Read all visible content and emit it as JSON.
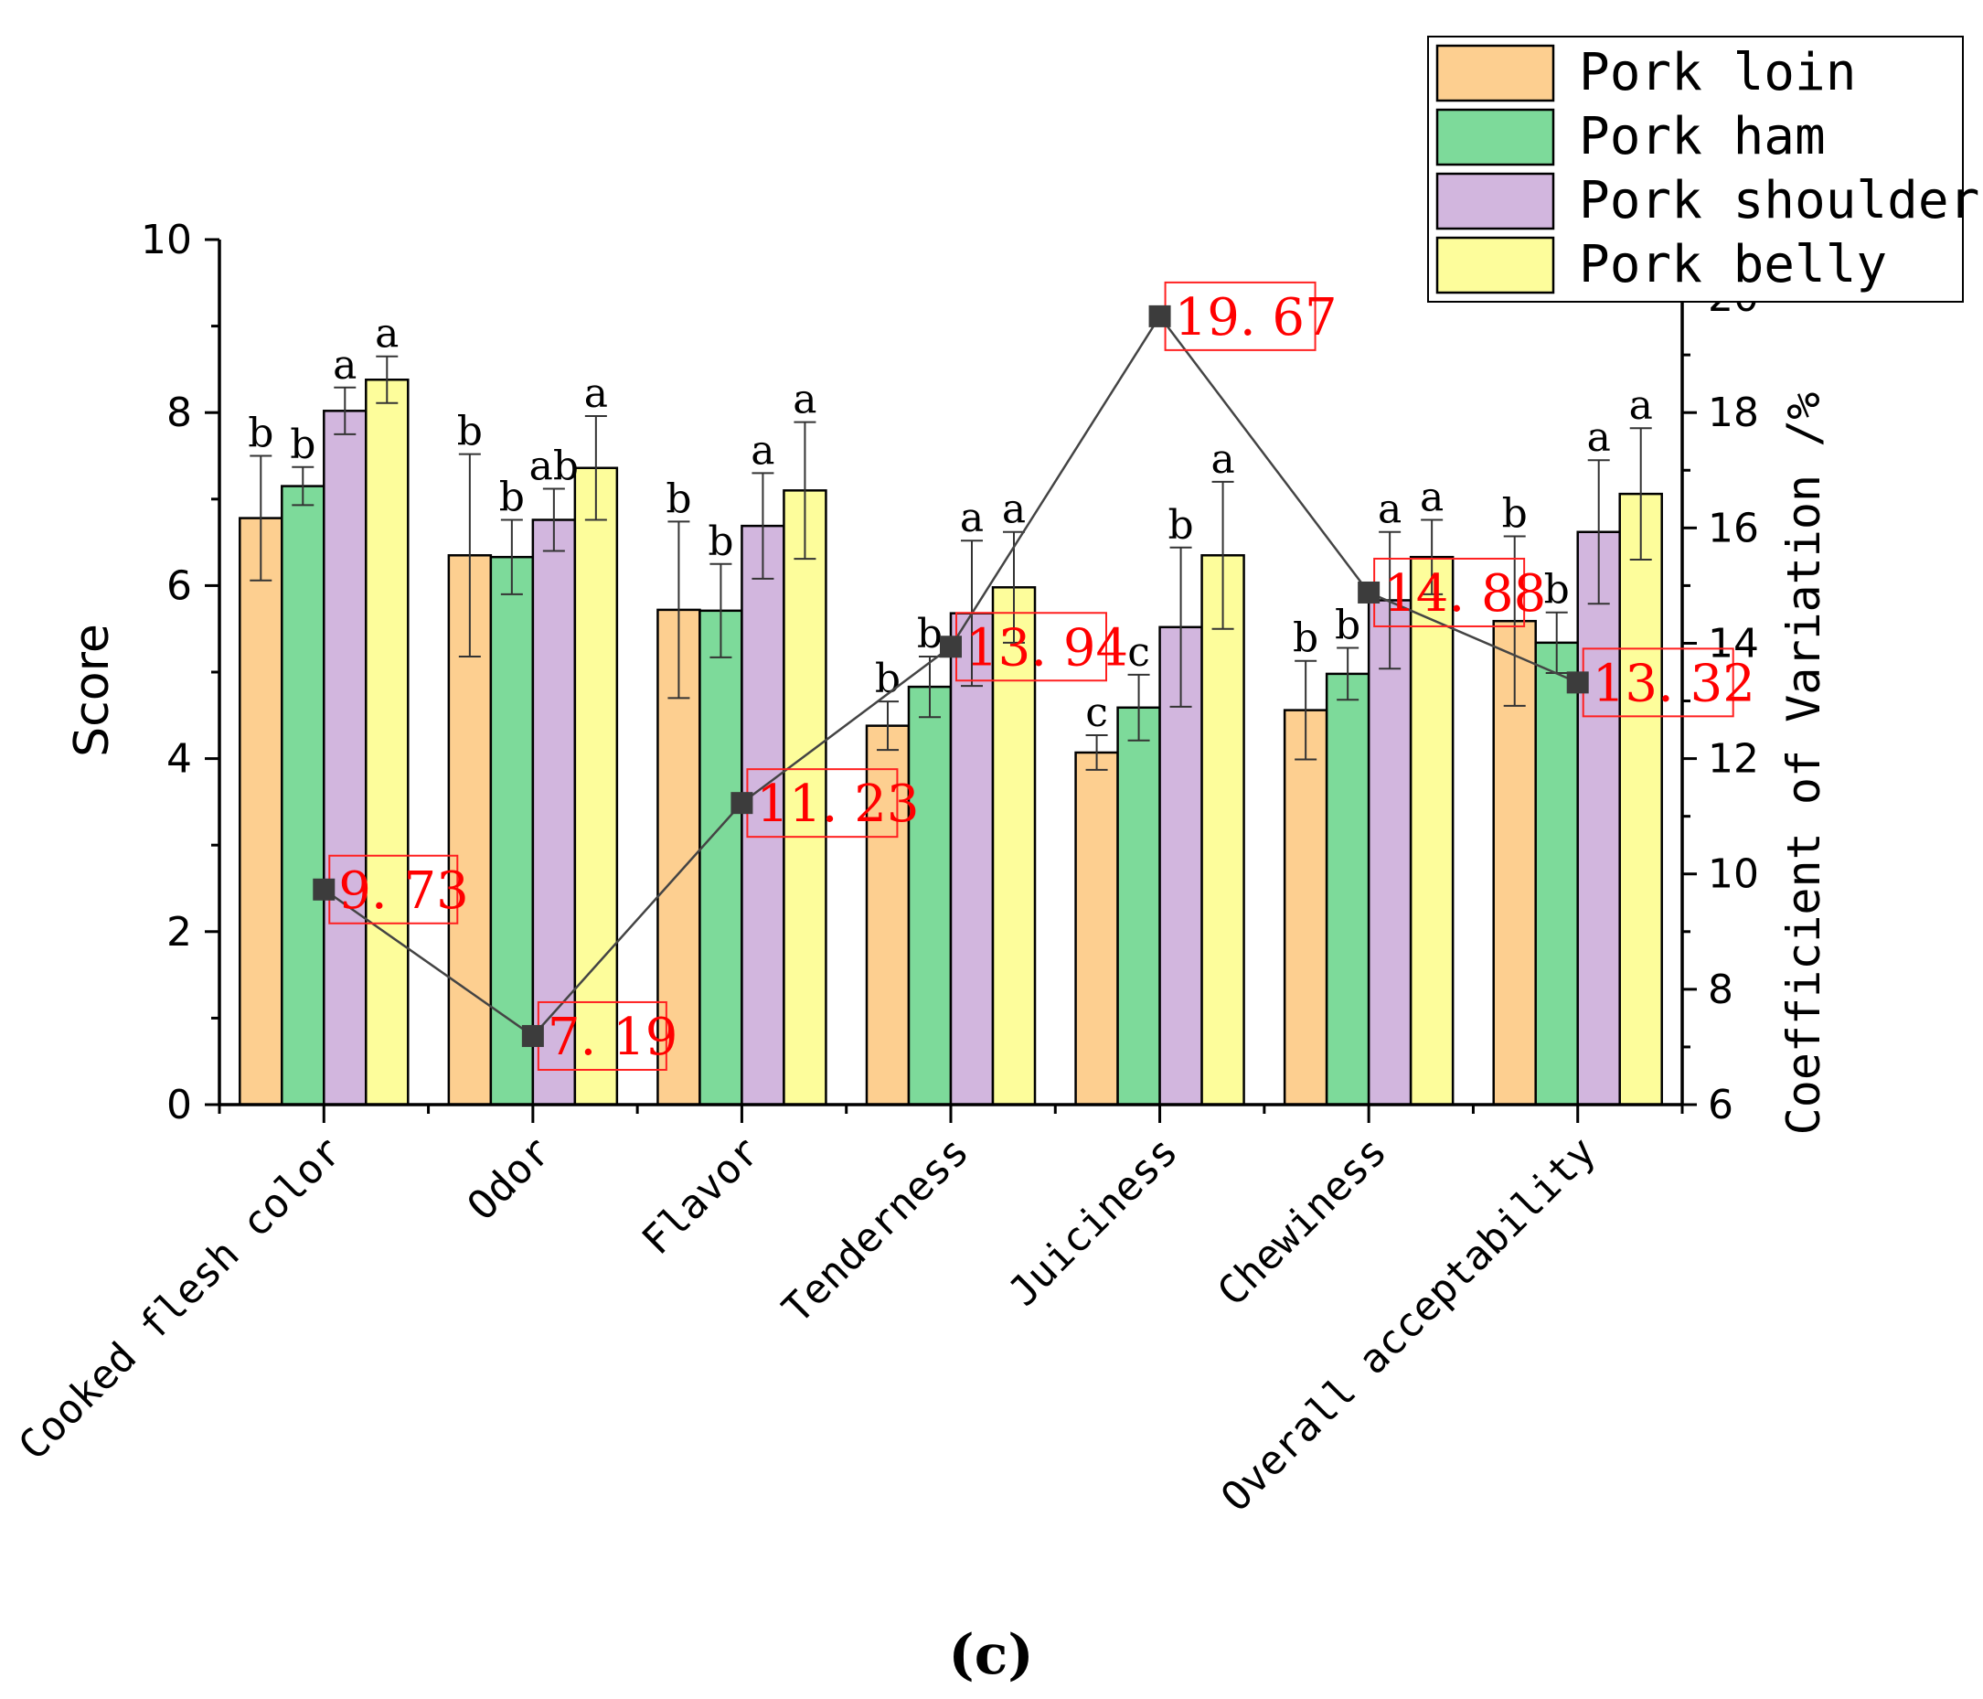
{
  "panel_label": "(c)",
  "chart_data": {
    "type": "bar",
    "ylabel": "Score",
    "y2label": "Coefficient of Variation /%",
    "ylim": [
      0,
      10
    ],
    "y2lim": [
      6,
      21
    ],
    "yticks": [
      0,
      2,
      4,
      6,
      8,
      10
    ],
    "y2ticks": [
      6,
      8,
      10,
      12,
      14,
      16,
      18,
      20
    ],
    "categories": [
      "Cooked flesh color",
      "Odor",
      "Flavor",
      "Tenderness",
      "Juiciness",
      "Chewiness",
      "Overall acceptability"
    ],
    "series": [
      {
        "name": "Pork loin",
        "color": "#fdcf90",
        "values": [
          6.78,
          6.35,
          5.72,
          4.38,
          4.07,
          4.56,
          5.59
        ],
        "errors": [
          0.72,
          1.17,
          1.02,
          0.28,
          0.2,
          0.57,
          0.98
        ],
        "letters": [
          "b",
          "b",
          "b",
          "b",
          "c",
          "b",
          "b"
        ]
      },
      {
        "name": "Pork ham",
        "color": "#7dda9a",
        "values": [
          7.15,
          6.33,
          5.71,
          4.83,
          4.59,
          4.98,
          5.34
        ],
        "errors": [
          0.22,
          0.43,
          0.54,
          0.35,
          0.38,
          0.3,
          0.35
        ],
        "letters": [
          "b",
          "b",
          "b",
          "b",
          "c",
          "b",
          "b"
        ]
      },
      {
        "name": "Pork shoulder",
        "color": "#d2b6de",
        "values": [
          8.02,
          6.76,
          6.69,
          5.68,
          5.52,
          5.83,
          6.62
        ],
        "errors": [
          0.27,
          0.36,
          0.61,
          0.84,
          0.92,
          0.79,
          0.83
        ],
        "letters": [
          "a",
          "ab",
          "a",
          "a",
          "b",
          "a",
          "a"
        ]
      },
      {
        "name": "Pork belly",
        "color": "#fdfd9b",
        "values": [
          8.38,
          7.36,
          7.1,
          5.98,
          6.35,
          6.33,
          7.06
        ],
        "errors": [
          0.27,
          0.6,
          0.79,
          0.64,
          0.85,
          0.43,
          0.76
        ],
        "letters": [
          "a",
          "a",
          "a",
          "a",
          "a",
          "a",
          "a"
        ]
      }
    ],
    "cv_series": {
      "name": "Coefficient of Variation",
      "values": [
        9.73,
        7.19,
        11.23,
        13.94,
        19.67,
        14.88,
        13.32
      ],
      "labels": [
        "9. 73",
        "7. 19",
        "11. 23",
        "13. 94",
        "19. 67",
        "14. 88",
        "13. 32"
      ]
    },
    "legend": [
      "Pork loin",
      "Pork ham",
      "Pork shoulder",
      "Pork belly"
    ],
    "legend_position": "top-right"
  }
}
